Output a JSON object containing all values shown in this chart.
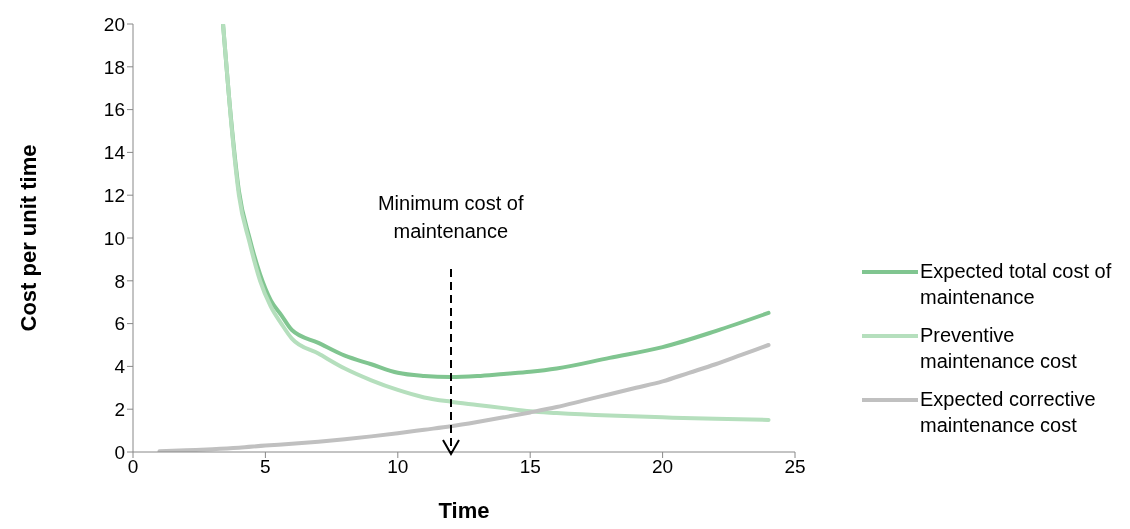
{
  "chart_data": {
    "type": "line",
    "xlabel": "Time",
    "ylabel": "Cost per unit time",
    "xlim": [
      0,
      25
    ],
    "xticks": [
      0,
      5,
      10,
      15,
      20,
      25
    ],
    "ylim": [
      0,
      20
    ],
    "yticks": [
      0,
      2,
      4,
      6,
      8,
      10,
      12,
      14,
      16,
      18,
      20
    ],
    "grid": false,
    "legend": "right",
    "marker": "none",
    "line_style": "solid",
    "annotations": [
      "Minimum cost of maintenance"
    ],
    "series": [
      {
        "name": "Expected total cost of maintenance",
        "color": "#80c590",
        "x": [
          3.4,
          3.7,
          4,
          4.4,
          4.8,
          5.2,
          5.6,
          6,
          7,
          8,
          9,
          10,
          11,
          12,
          13,
          14,
          15,
          16,
          18,
          20,
          22,
          24
        ],
        "values": [
          20,
          15.6,
          12.2,
          10,
          8.3,
          7.1,
          6.4,
          5.7,
          5.1,
          4.5,
          4.1,
          3.7,
          3.55,
          3.5,
          3.55,
          3.65,
          3.75,
          3.9,
          4.4,
          4.9,
          5.65,
          6.5
        ]
      },
      {
        "name": "Preventive maintenance cost",
        "color": "#b5dfbd",
        "x": [
          3.4,
          3.7,
          4,
          4.4,
          4.8,
          5.2,
          5.6,
          6,
          7,
          8,
          9,
          10,
          11,
          12,
          13,
          14,
          15,
          16,
          18,
          20,
          22,
          24
        ],
        "values": [
          20,
          15.5,
          12,
          9.8,
          8,
          6.8,
          6,
          5.3,
          4.6,
          3.9,
          3.35,
          2.9,
          2.55,
          2.35,
          2.2,
          2.05,
          1.9,
          1.82,
          1.7,
          1.62,
          1.55,
          1.5
        ]
      },
      {
        "name": "Expected corrective maintenance cost",
        "color": "#c0c0c0",
        "x": [
          1,
          2,
          3,
          4,
          5,
          6,
          7,
          8,
          9,
          10,
          11,
          12,
          13,
          14,
          15,
          16,
          17,
          18,
          19,
          20,
          21,
          22,
          23,
          24
        ],
        "values": [
          0.03,
          0.08,
          0.13,
          0.2,
          0.3,
          0.38,
          0.48,
          0.6,
          0.73,
          0.88,
          1.04,
          1.2,
          1.4,
          1.62,
          1.85,
          2.1,
          2.4,
          2.7,
          3,
          3.3,
          3.7,
          4.1,
          4.55,
          5
        ]
      }
    ]
  }
}
